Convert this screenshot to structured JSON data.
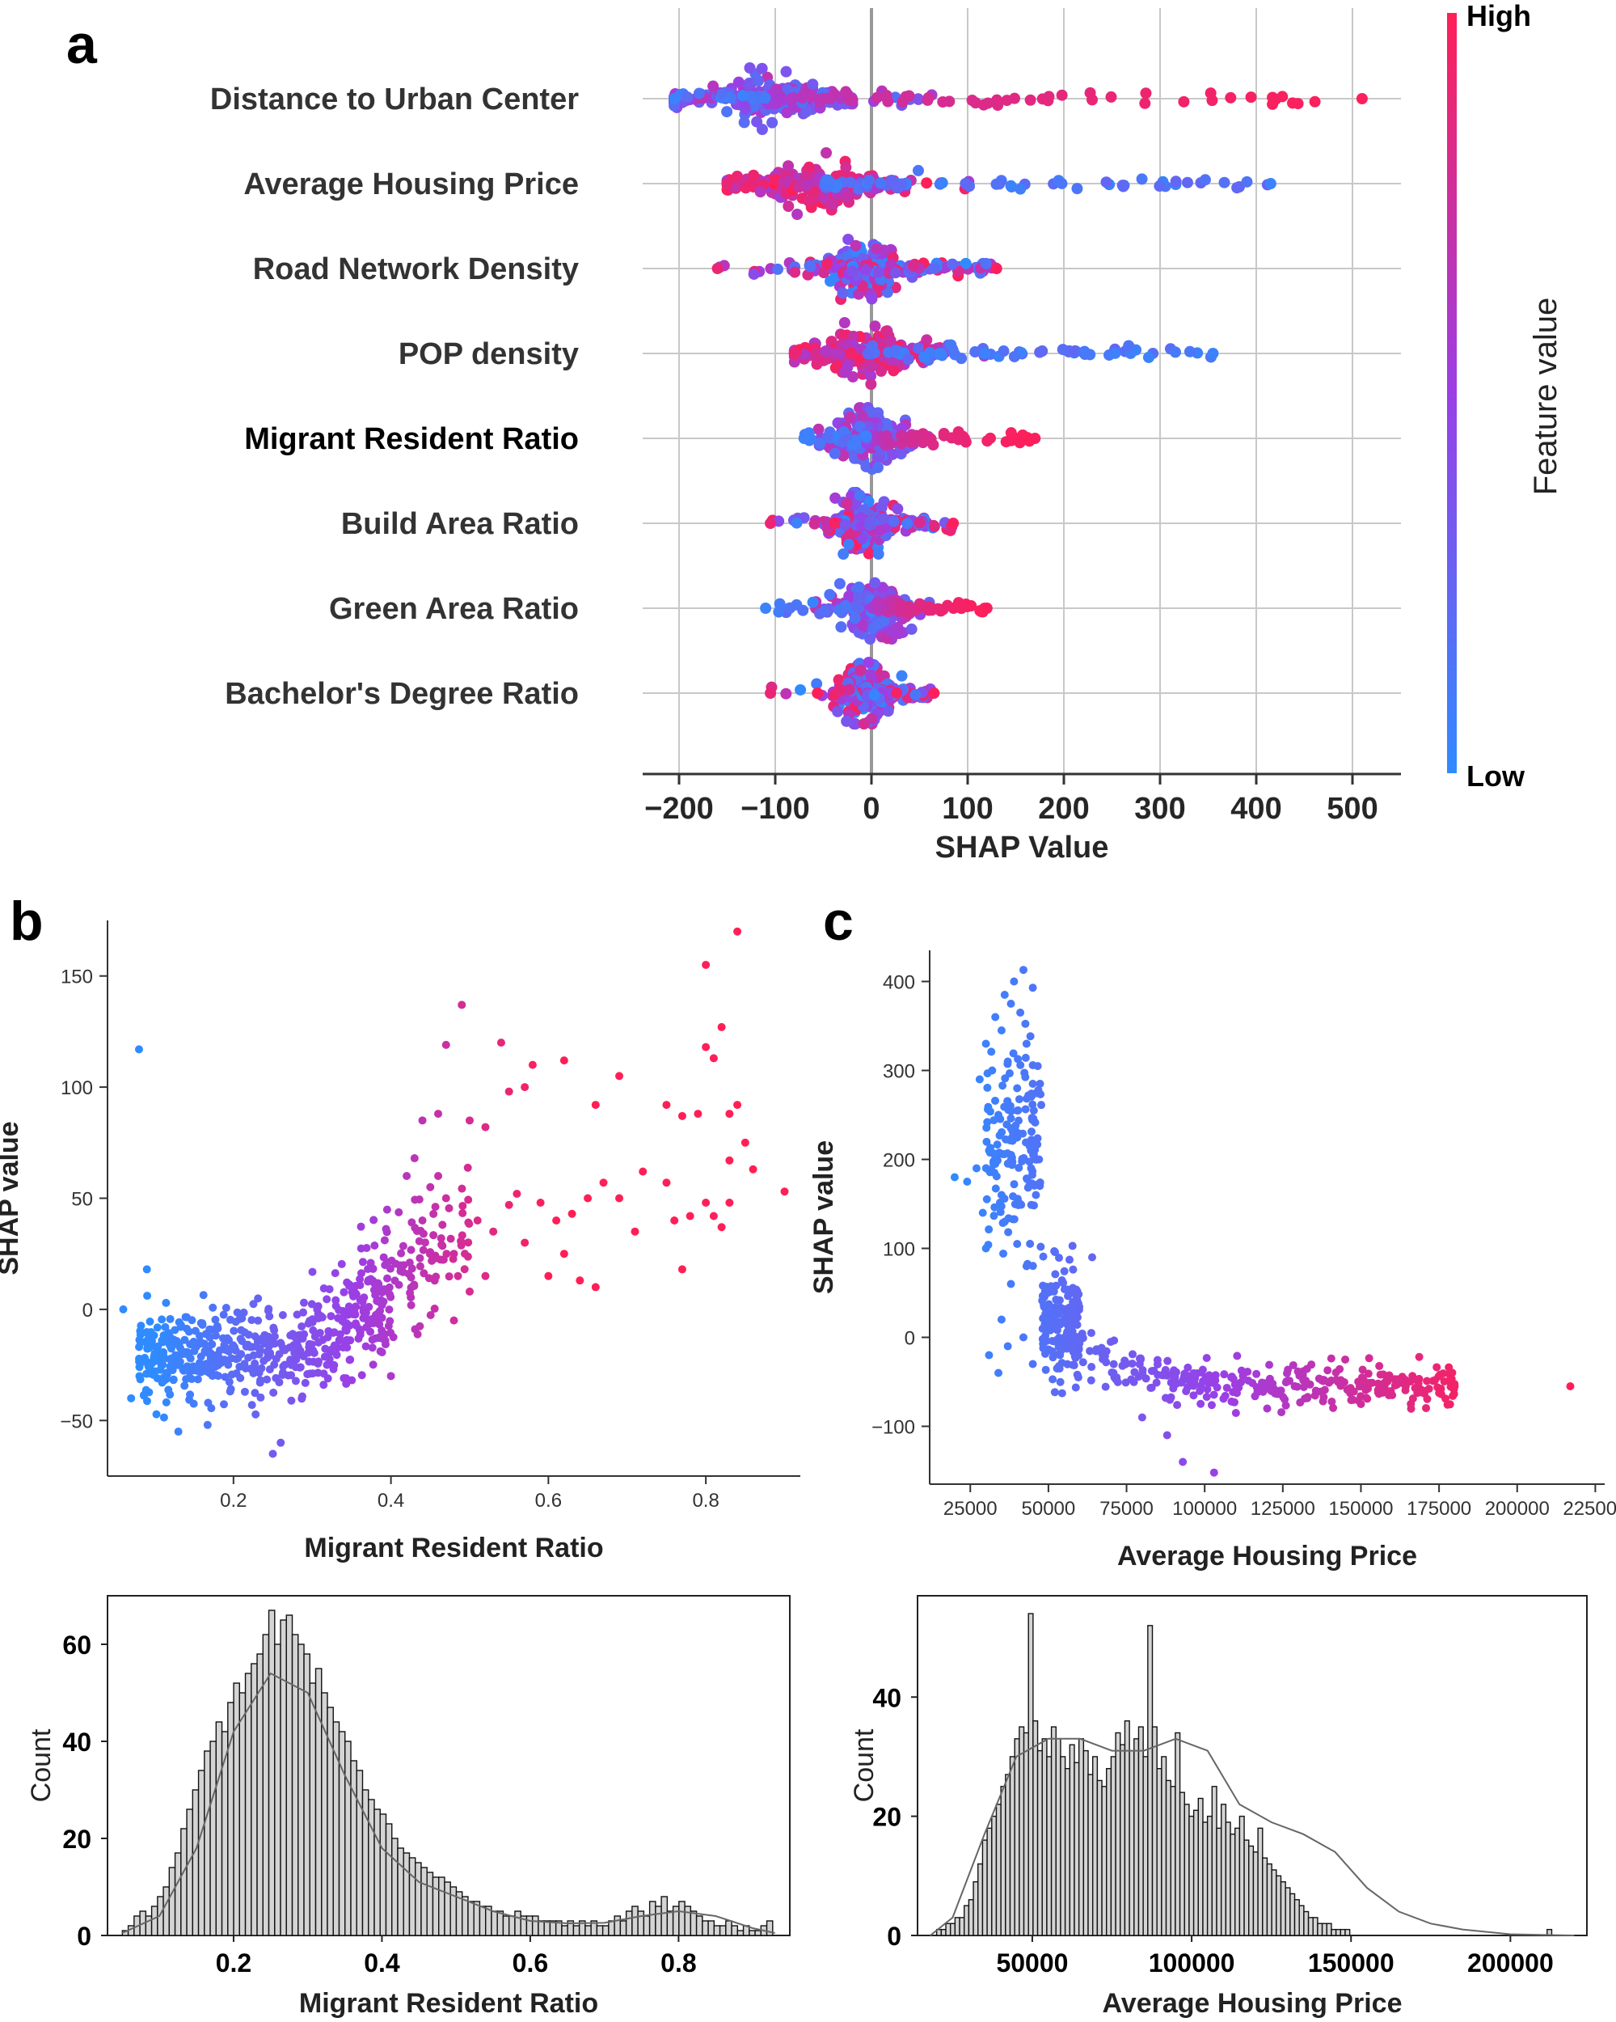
{
  "panel_letters": {
    "a": "a",
    "b": "b",
    "c": "c"
  },
  "colors": {
    "low": "#2f8bff",
    "mid": "#9a3fe6",
    "high": "#ff1f57",
    "grid": "#c8c8c8",
    "axis": "#333333",
    "hist_fill": "#d4d4d4"
  },
  "chart_data": [
    {
      "id": "a",
      "type": "scatter",
      "subtype": "shap-beeswarm",
      "title": "",
      "xlabel": "SHAP Value",
      "xlim": [
        -210,
        545
      ],
      "xticks": [
        -200,
        -100,
        0,
        100,
        200,
        300,
        400,
        500
      ],
      "xtick_labels": [
        "−200",
        "−100",
        "0",
        "100",
        "200",
        "300",
        "400",
        "500"
      ],
      "grid": true,
      "colorbar": {
        "label": "Feature value",
        "high": "High",
        "low": "Low"
      },
      "features": [
        {
          "name": "Distance to Urban Center",
          "min": -205,
          "max": 510,
          "center": -110,
          "color_trend": "increasing"
        },
        {
          "name": "Average Housing Price",
          "min": -150,
          "max": 415,
          "center": -55,
          "color_trend": "decreasing"
        },
        {
          "name": "Road Network Density",
          "min": -160,
          "max": 130,
          "center": -8,
          "color_trend": "mixed"
        },
        {
          "name": "POP density",
          "min": -80,
          "max": 355,
          "center": -10,
          "color_trend": "decreasing"
        },
        {
          "name": "Migrant Resident Ratio",
          "min": -70,
          "max": 170,
          "center": -5,
          "color_trend": "increasing"
        },
        {
          "name": "Build Area Ratio",
          "min": -105,
          "max": 85,
          "center": -10,
          "color_trend": "mixed"
        },
        {
          "name": "Green Area Ratio",
          "min": -110,
          "max": 120,
          "center": 0,
          "color_trend": "increasing"
        },
        {
          "name": "Bachelor's Degree Ratio",
          "min": -105,
          "max": 65,
          "center": -5,
          "color_trend": "mixed"
        }
      ]
    },
    {
      "id": "b",
      "type": "scatter",
      "subtype": "shap-dependence",
      "xlabel": "Migrant Resident Ratio",
      "ylabel": "SHAP value",
      "xlim": [
        0.04,
        0.92
      ],
      "ylim": [
        -75,
        175
      ],
      "xticks": [
        0.2,
        0.4,
        0.6,
        0.8
      ],
      "yticks": [
        -50,
        0,
        50,
        100,
        150
      ],
      "ytick_labels": [
        "−50",
        "0",
        "50",
        "100",
        "150"
      ],
      "color_by": "Migrant Resident Ratio",
      "points": [
        [
          0.08,
          117
        ],
        [
          0.06,
          0
        ],
        [
          0.09,
          18
        ],
        [
          0.07,
          -40
        ],
        [
          0.13,
          -55
        ],
        [
          0.25,
          -65
        ],
        [
          0.26,
          -60
        ],
        [
          0.84,
          170
        ],
        [
          0.8,
          155
        ],
        [
          0.82,
          127
        ],
        [
          0.49,
          137
        ],
        [
          0.47,
          119
        ],
        [
          0.54,
          120
        ],
        [
          0.58,
          110
        ],
        [
          0.62,
          112
        ],
        [
          0.57,
          100
        ],
        [
          0.66,
          92
        ],
        [
          0.69,
          105
        ],
        [
          0.8,
          118
        ],
        [
          0.81,
          113
        ],
        [
          0.55,
          98
        ],
        [
          0.75,
          92
        ],
        [
          0.77,
          87
        ],
        [
          0.79,
          88
        ],
        [
          0.84,
          92
        ],
        [
          0.83,
          88
        ],
        [
          0.44,
          85
        ],
        [
          0.46,
          88
        ],
        [
          0.5,
          85
        ],
        [
          0.52,
          82
        ],
        [
          0.85,
          75
        ],
        [
          0.83,
          67
        ],
        [
          0.86,
          63
        ],
        [
          0.9,
          53
        ],
        [
          0.78,
          42
        ],
        [
          0.8,
          48
        ],
        [
          0.72,
          62
        ],
        [
          0.75,
          57
        ],
        [
          0.69,
          50
        ],
        [
          0.67,
          57
        ],
        [
          0.65,
          50
        ],
        [
          0.63,
          43
        ],
        [
          0.61,
          40
        ],
        [
          0.59,
          48
        ],
        [
          0.56,
          52
        ],
        [
          0.55,
          47
        ],
        [
          0.57,
          30
        ],
        [
          0.6,
          15
        ],
        [
          0.62,
          25
        ],
        [
          0.64,
          13
        ],
        [
          0.66,
          10
        ],
        [
          0.71,
          35
        ],
        [
          0.76,
          40
        ],
        [
          0.77,
          18
        ],
        [
          0.82,
          37
        ],
        [
          0.83,
          48
        ],
        [
          0.81,
          42
        ],
        [
          0.53,
          35
        ],
        [
          0.51,
          40
        ],
        [
          0.4,
          -30
        ],
        [
          0.42,
          60
        ],
        [
          0.43,
          68
        ],
        [
          0.44,
          40
        ],
        [
          0.45,
          55
        ],
        [
          0.47,
          50
        ],
        [
          0.48,
          25
        ],
        [
          0.49,
          30
        ],
        [
          0.5,
          8
        ],
        [
          0.48,
          -5
        ],
        [
          0.52,
          15
        ],
        [
          0.46,
          60
        ]
      ]
    },
    {
      "id": "c",
      "type": "scatter",
      "subtype": "shap-dependence",
      "xlabel": "Average Housing Price",
      "ylabel": "SHAP value",
      "xlim": [
        12000,
        228000
      ],
      "ylim": [
        -165,
        435
      ],
      "xticks": [
        25000,
        50000,
        75000,
        100000,
        125000,
        150000,
        175000,
        200000,
        225000
      ],
      "yticks": [
        -100,
        0,
        100,
        200,
        300,
        400
      ],
      "ytick_labels": [
        "−100",
        "0",
        "100",
        "200",
        "300",
        "400"
      ],
      "color_by": "Average Housing Price",
      "points": [
        [
          42000,
          413
        ],
        [
          39000,
          400
        ],
        [
          45000,
          393
        ],
        [
          36000,
          385
        ],
        [
          33000,
          360
        ],
        [
          38000,
          375
        ],
        [
          41000,
          365
        ],
        [
          35000,
          345
        ],
        [
          30000,
          330
        ],
        [
          32000,
          300
        ],
        [
          37000,
          310
        ],
        [
          43000,
          330
        ],
        [
          28000,
          290
        ],
        [
          40000,
          280
        ],
        [
          34000,
          250
        ],
        [
          45000,
          285
        ],
        [
          38000,
          235
        ],
        [
          31000,
          210
        ],
        [
          20000,
          180
        ],
        [
          24000,
          175
        ],
        [
          27000,
          190
        ],
        [
          35000,
          160
        ],
        [
          41000,
          150
        ],
        [
          46000,
          160
        ],
        [
          29000,
          140
        ],
        [
          36000,
          130
        ],
        [
          47000,
          200
        ],
        [
          44000,
          215
        ],
        [
          39000,
          225
        ],
        [
          33000,
          195
        ],
        [
          30000,
          100
        ],
        [
          40000,
          105
        ],
        [
          43000,
          80
        ],
        [
          38000,
          60
        ],
        [
          35000,
          20
        ],
        [
          42000,
          0
        ],
        [
          37000,
          -10
        ],
        [
          31000,
          -20
        ],
        [
          45000,
          -30
        ],
        [
          34000,
          -40
        ],
        [
          217000,
          -55
        ],
        [
          93000,
          -140
        ],
        [
          103000,
          -152
        ],
        [
          180000,
          -55
        ],
        [
          170000,
          -60
        ],
        [
          160000,
          -65
        ],
        [
          150000,
          -75
        ],
        [
          120000,
          -80
        ],
        [
          110000,
          -85
        ],
        [
          88000,
          -110
        ],
        [
          80000,
          -90
        ],
        [
          64000,
          90
        ]
      ]
    },
    {
      "id": "b_hist",
      "type": "bar",
      "subtype": "histogram-kde",
      "xlabel": "Migrant Resident Ratio",
      "ylabel": "Count",
      "xlim": [
        0.03,
        0.95
      ],
      "ylim": [
        0,
        70
      ],
      "xticks": [
        0.2,
        0.4,
        0.6,
        0.8
      ],
      "yticks": [
        0,
        20,
        40,
        60
      ],
      "bin_start": 0.05,
      "bin_width": 0.0079,
      "values": [
        1,
        2,
        4,
        5,
        4,
        6,
        8,
        10,
        14,
        17,
        22,
        26,
        30,
        34,
        38,
        40,
        44,
        42,
        48,
        52,
        50,
        54,
        56,
        58,
        62,
        67,
        60,
        65,
        66,
        62,
        60,
        58,
        52,
        55,
        50,
        47,
        44,
        42,
        40,
        36,
        34,
        30,
        28,
        26,
        25,
        23,
        20,
        18,
        17,
        16,
        15,
        14,
        13,
        12,
        12,
        11,
        10,
        9,
        8,
        7,
        7,
        6,
        6,
        5,
        5,
        4,
        4,
        5,
        4,
        4,
        4,
        3,
        3,
        3,
        3,
        2,
        3,
        2,
        3,
        2,
        3,
        2,
        2,
        3,
        4,
        3,
        5,
        6,
        5,
        4,
        7,
        6,
        8,
        5,
        6,
        7,
        6,
        5,
        4,
        3,
        3,
        2,
        2,
        3,
        2,
        1,
        2,
        1,
        1,
        2,
        3
      ],
      "kde": [
        [
          0.05,
          0.5
        ],
        [
          0.1,
          4
        ],
        [
          0.15,
          18
        ],
        [
          0.2,
          42
        ],
        [
          0.25,
          54
        ],
        [
          0.3,
          50
        ],
        [
          0.35,
          33
        ],
        [
          0.4,
          18
        ],
        [
          0.45,
          11
        ],
        [
          0.5,
          8
        ],
        [
          0.55,
          5
        ],
        [
          0.6,
          3
        ],
        [
          0.65,
          2.5
        ],
        [
          0.7,
          2.6
        ],
        [
          0.75,
          4
        ],
        [
          0.8,
          5
        ],
        [
          0.85,
          4
        ],
        [
          0.9,
          1.5
        ],
        [
          0.93,
          0.5
        ]
      ]
    },
    {
      "id": "c_hist",
      "type": "bar",
      "subtype": "histogram-kde",
      "xlabel": "Average Housing Price",
      "ylabel": "Count",
      "xlim": [
        14000,
        224000
      ],
      "ylim": [
        0,
        57
      ],
      "xticks": [
        50000,
        100000,
        150000,
        200000
      ],
      "yticks": [
        0,
        20,
        40
      ],
      "bin_start": 20000,
      "bin_width": 1440,
      "values": [
        1,
        1,
        2,
        2,
        3,
        3,
        5,
        6,
        9,
        12,
        16,
        18,
        20,
        22,
        25,
        27,
        30,
        33,
        35,
        34,
        54,
        36,
        31,
        33,
        30,
        35,
        33,
        30,
        28,
        32,
        29,
        33,
        31,
        27,
        30,
        26,
        25,
        28,
        30,
        34,
        32,
        36,
        31,
        33,
        35,
        30,
        52,
        35,
        28,
        30,
        26,
        25,
        34,
        24,
        22,
        20,
        21,
        23,
        19,
        20,
        25,
        18,
        22,
        19,
        17,
        18,
        20,
        16,
        15,
        14,
        18,
        13,
        12,
        11,
        10,
        9,
        8,
        7,
        6,
        5,
        4,
        3,
        3,
        2,
        2,
        2,
        1,
        1,
        1,
        1,
        0,
        0,
        0,
        0,
        0,
        0,
        0,
        0,
        0,
        0,
        0,
        0,
        0,
        0,
        0,
        0,
        0,
        0,
        0,
        0,
        0,
        0,
        0,
        0,
        0,
        0,
        0,
        0,
        0,
        0,
        0,
        0,
        0,
        0,
        0,
        0,
        0,
        0,
        0,
        0,
        0,
        0,
        0,
        1
      ],
      "kde": [
        [
          18000,
          0
        ],
        [
          25000,
          3
        ],
        [
          35000,
          17
        ],
        [
          45000,
          30
        ],
        [
          55000,
          33
        ],
        [
          65000,
          33
        ],
        [
          75000,
          31
        ],
        [
          85000,
          31
        ],
        [
          95000,
          33
        ],
        [
          105000,
          31
        ],
        [
          115000,
          22
        ],
        [
          125000,
          19
        ],
        [
          135000,
          17
        ],
        [
          145000,
          14
        ],
        [
          155000,
          8
        ],
        [
          165000,
          4
        ],
        [
          175000,
          2
        ],
        [
          185000,
          1
        ],
        [
          200000,
          0.2
        ],
        [
          220000,
          0
        ]
      ]
    }
  ]
}
